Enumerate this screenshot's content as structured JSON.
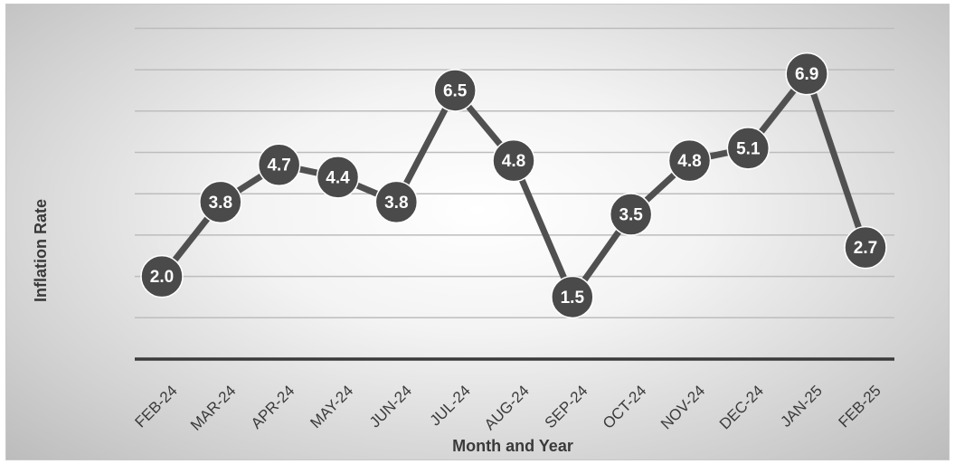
{
  "chart_data": {
    "type": "line",
    "title": "",
    "xlabel": "Month and Year",
    "ylabel": "Inflation Rate",
    "categories": [
      "FEB-24",
      "MAR-24",
      "APR-24",
      "MAY-24",
      "JUN-24",
      "JUL-24",
      "AUG-24",
      "SEP-24",
      "OCT-24",
      "NOV-24",
      "DEC-24",
      "JAN-25",
      "FEB-25"
    ],
    "values": [
      2.0,
      3.8,
      4.7,
      4.4,
      3.8,
      6.5,
      4.8,
      1.5,
      3.5,
      4.8,
      5.1,
      6.9,
      2.7
    ],
    "value_labels": [
      "2.0",
      "3.8",
      "4.7",
      "4.4",
      "3.8",
      "6.5",
      "4.8",
      "1.5",
      "3.5",
      "4.8",
      "5.1",
      "6.9",
      "2.7"
    ],
    "ylim": [
      0,
      8
    ],
    "gridlines": [
      1,
      2,
      3,
      4,
      5,
      6,
      7,
      8
    ],
    "grid": true,
    "legend": "none",
    "y_tick_labels_shown": false,
    "colors": {
      "line": "#505050",
      "marker": "#4a4a4a",
      "label_text": "#ffffff",
      "axis": "#3a3a3a",
      "grid": "#bdbdbd"
    }
  }
}
